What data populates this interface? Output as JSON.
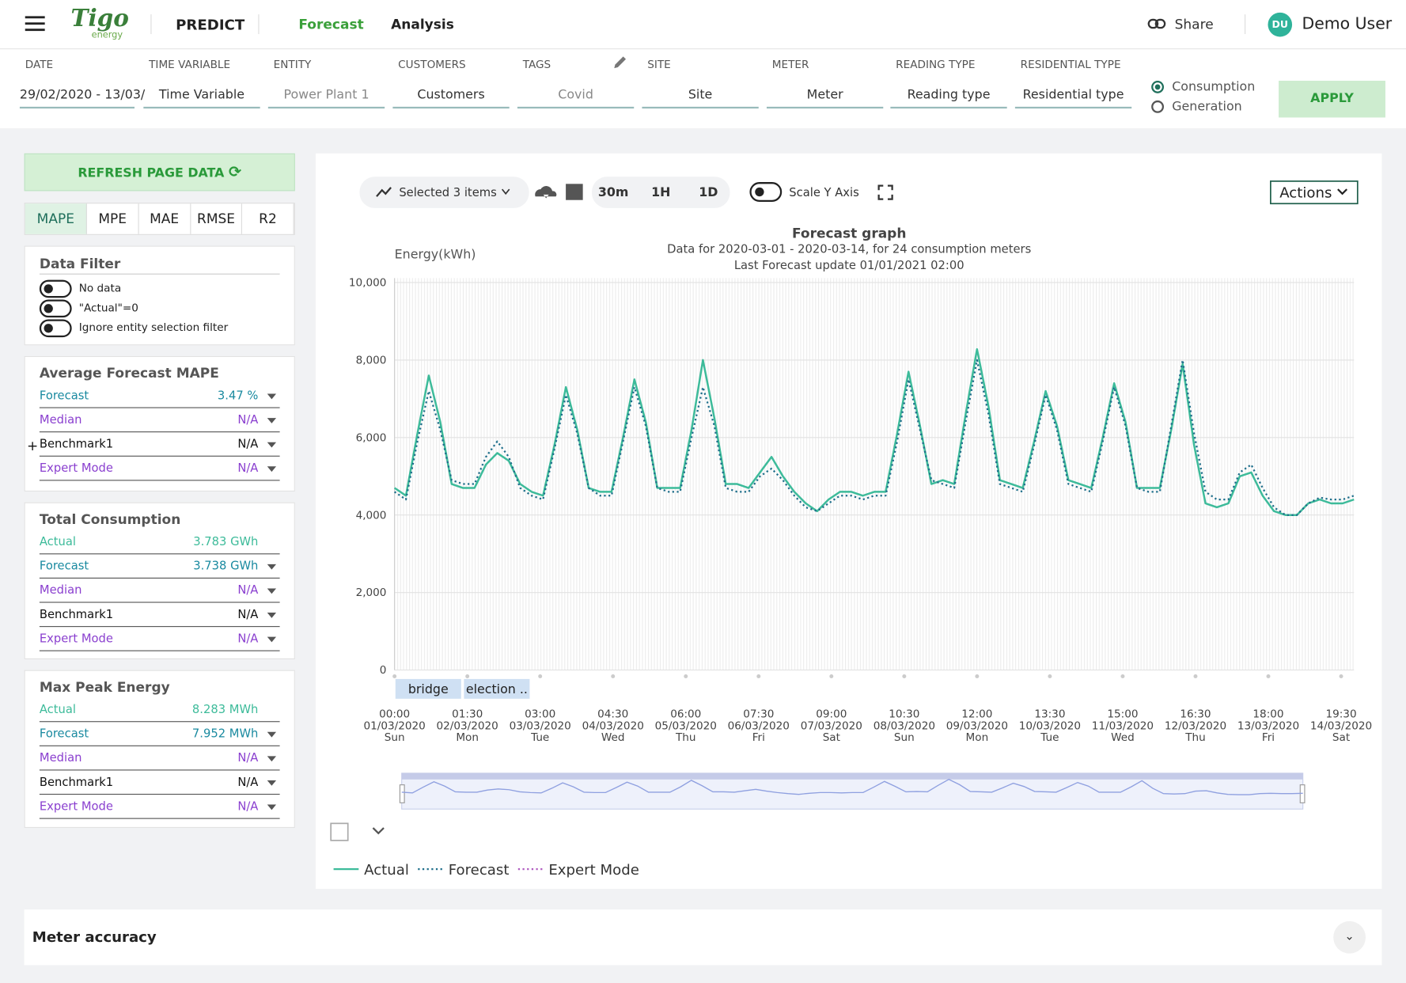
{
  "header": {
    "brand": "Tigo",
    "brand_sub": "energy",
    "app": "PREDICT",
    "tabs": [
      "Forecast",
      "Analysis"
    ],
    "share": "Share",
    "user_initials": "DU",
    "user": "Demo User"
  },
  "filters": [
    {
      "label": "DATE",
      "value": "29/02/2020 - 13/03/"
    },
    {
      "label": "TIME VARIABLE",
      "value": "Time Variable"
    },
    {
      "label": "ENTITY",
      "value": "Power Plant 1"
    },
    {
      "label": "CUSTOMERS",
      "value": "Customers"
    },
    {
      "label": "TAGS",
      "value": "Covid"
    },
    {
      "label": "SITE",
      "value": "Site"
    },
    {
      "label": "METER",
      "value": "Meter"
    },
    {
      "label": "READING TYPE",
      "value": "Reading type"
    },
    {
      "label": "RESIDENTIAL TYPE",
      "value": "Residential type"
    }
  ],
  "radio": [
    "Consumption",
    "Generation"
  ],
  "apply": "APPLY",
  "sidebar": {
    "refresh": "REFRESH PAGE DATA",
    "metric_tabs": [
      "MAPE",
      "MPE",
      "MAE",
      "RMSE",
      "R2"
    ],
    "data_filter": {
      "title": "Data Filter",
      "toggles": [
        "No data",
        "\"Actual\"=0",
        "Ignore entity selection filter"
      ]
    },
    "panels": [
      {
        "title": "Average Forecast MAPE",
        "rows": [
          {
            "name": "Forecast",
            "value": "3.47 %",
            "color": "#1a8aa0",
            "menu": true
          },
          {
            "name": "Median",
            "value": "N/A",
            "color": "#8a3fcf",
            "menu": true
          },
          {
            "name": "Benchmark1",
            "value": "N/A",
            "color": "#111111",
            "menu": true,
            "plus": "+"
          },
          {
            "name": "Expert Mode",
            "value": "N/A",
            "color": "#8a3fcf",
            "menu": true
          }
        ]
      },
      {
        "title": "Total Consumption",
        "rows": [
          {
            "name": "Actual",
            "value": "3.783 GWh",
            "color": "#3dbb9a",
            "menu": false
          },
          {
            "name": "Forecast",
            "value": "3.738 GWh",
            "color": "#1a8aa0",
            "menu": true
          },
          {
            "name": "Median",
            "value": "N/A",
            "color": "#8a3fcf",
            "menu": true
          },
          {
            "name": "Benchmark1",
            "value": "N/A",
            "color": "#111111",
            "menu": true
          },
          {
            "name": "Expert Mode",
            "value": "N/A",
            "color": "#8a3fcf",
            "menu": true
          }
        ]
      },
      {
        "title": "Max Peak Energy",
        "rows": [
          {
            "name": "Actual",
            "value": "8.283 MWh",
            "color": "#3dbb9a",
            "menu": false
          },
          {
            "name": "Forecast",
            "value": "7.952 MWh",
            "color": "#1a8aa0",
            "menu": true
          },
          {
            "name": "Median",
            "value": "N/A",
            "color": "#8a3fcf",
            "menu": true
          },
          {
            "name": "Benchmark1",
            "value": "N/A",
            "color": "#111111",
            "menu": true
          },
          {
            "name": "Expert Mode",
            "value": "N/A",
            "color": "#8a3fcf",
            "menu": true
          }
        ]
      }
    ]
  },
  "toolbar": {
    "selected": "Selected 3 items",
    "resolutions": [
      "30m",
      "1H",
      "1D"
    ],
    "scale": "Scale Y Axis",
    "actions": "Actions"
  },
  "chart_data": {
    "type": "line",
    "title": "Forecast graph",
    "subtitle": [
      "Data for 2020-03-01 - 2020-03-14, for 24 consumption meters",
      "Last Forecast update 01/01/2021 02:00"
    ],
    "y_label": "Energy(kWh)",
    "x": [
      0,
      4,
      8,
      12,
      16,
      20,
      24,
      28,
      32,
      36,
      40,
      44,
      48,
      52,
      56,
      60,
      64,
      68,
      72,
      76,
      80,
      84,
      88,
      92,
      96,
      100,
      104,
      108,
      112,
      116,
      120,
      124,
      128,
      132,
      136,
      140,
      144,
      148,
      152,
      156,
      160,
      164,
      168,
      172,
      176,
      180,
      184,
      188,
      192,
      196,
      200,
      204,
      208,
      212,
      216,
      220,
      224,
      228,
      232,
      236,
      240,
      244,
      248,
      252,
      256,
      260,
      264,
      268,
      272,
      276,
      280,
      284,
      288,
      292,
      296,
      300,
      304,
      308,
      312,
      316,
      320,
      324,
      328,
      332,
      336
    ],
    "xlim": [
      0,
      336
    ],
    "xticks": [
      {
        "value": 0,
        "label": [
          "00:00",
          "01/03/2020",
          "Sun"
        ]
      },
      {
        "value": 25.5,
        "label": [
          "01:30",
          "02/03/2020",
          "Mon"
        ]
      },
      {
        "value": 51,
        "label": [
          "03:00",
          "03/03/2020",
          "Tue"
        ]
      },
      {
        "value": 76.5,
        "label": [
          "04:30",
          "04/03/2020",
          "Wed"
        ]
      },
      {
        "value": 102,
        "label": [
          "06:00",
          "05/03/2020",
          "Thu"
        ]
      },
      {
        "value": 127.5,
        "label": [
          "07:30",
          "06/03/2020",
          "Fri"
        ]
      },
      {
        "value": 153,
        "label": [
          "09:00",
          "07/03/2020",
          "Sat"
        ]
      },
      {
        "value": 178.5,
        "label": [
          "10:30",
          "08/03/2020",
          "Sun"
        ]
      },
      {
        "value": 204,
        "label": [
          "12:00",
          "09/03/2020",
          "Mon"
        ]
      },
      {
        "value": 229.5,
        "label": [
          "13:30",
          "10/03/2020",
          "Tue"
        ]
      },
      {
        "value": 255,
        "label": [
          "15:00",
          "11/03/2020",
          "Wed"
        ]
      },
      {
        "value": 280.5,
        "label": [
          "16:30",
          "12/03/2020",
          "Thu"
        ]
      },
      {
        "value": 306,
        "label": [
          "18:00",
          "13/03/2020",
          "Fri"
        ]
      },
      {
        "value": 331.5,
        "label": [
          "19:30",
          "14/03/2020",
          "Sat"
        ]
      }
    ],
    "ylim": [
      0,
      10000
    ],
    "yticks": [
      0,
      {
        "value": 2000,
        "label": "2,000"
      },
      {
        "value": 4000,
        "label": "4,000"
      },
      {
        "value": 6000,
        "label": "6,000"
      },
      {
        "value": 8000,
        "label": "8,000"
      },
      {
        "value": 10000,
        "label": "10,000"
      }
    ],
    "grid": true,
    "series": [
      {
        "name": "Actual",
        "color": "#3dbb9a",
        "style": "solid",
        "values": [
          4700,
          4500,
          6100,
          7600,
          6400,
          4800,
          4700,
          4700,
          5300,
          5600,
          5400,
          4800,
          4600,
          4500,
          5800,
          7300,
          6200,
          4700,
          4600,
          4600,
          6000,
          7500,
          6400,
          4700,
          4700,
          4700,
          6200,
          8000,
          6500,
          4800,
          4800,
          4700,
          5100,
          5500,
          5000,
          4600,
          4300,
          4100,
          4400,
          4600,
          4600,
          4500,
          4600,
          4600,
          6100,
          7700,
          6300,
          4800,
          4900,
          4800,
          6600,
          8280,
          6800,
          4900,
          4800,
          4700,
          5900,
          7200,
          6300,
          4900,
          4800,
          4700,
          6000,
          7400,
          6400,
          4700,
          4700,
          4700,
          6200,
          7900,
          5800,
          4300,
          4200,
          4300,
          5000,
          5100,
          4500,
          4100,
          4000,
          4000,
          4300,
          4400,
          4300,
          4300,
          4400
        ]
      },
      {
        "name": "Forecast",
        "color": "#1f6f8b",
        "style": "dotted",
        "values": [
          4600,
          4400,
          5900,
          7200,
          6200,
          4900,
          4800,
          4800,
          5500,
          5900,
          5500,
          4700,
          4500,
          4400,
          5700,
          7100,
          6100,
          4700,
          4500,
          4500,
          5900,
          7300,
          6300,
          4700,
          4600,
          4600,
          6000,
          7300,
          6300,
          4700,
          4600,
          4600,
          5000,
          5200,
          4900,
          4500,
          4200,
          4100,
          4300,
          4500,
          4500,
          4400,
          4500,
          4500,
          5900,
          7500,
          6200,
          4900,
          4800,
          4700,
          6400,
          8000,
          6600,
          4800,
          4700,
          4600,
          5800,
          7100,
          6200,
          4800,
          4700,
          4600,
          5900,
          7300,
          6300,
          4700,
          4600,
          4600,
          6300,
          8000,
          6100,
          4600,
          4400,
          4400,
          5100,
          5300,
          4700,
          4200,
          4000,
          4000,
          4300,
          4450,
          4400,
          4400,
          4500
        ]
      },
      {
        "name": "Expert Mode",
        "color": "#b05cc0",
        "style": "dotted"
      }
    ],
    "annotations": [
      {
        "label": "bridge",
        "x": [
          0,
          23
        ]
      },
      {
        "label": "election ..",
        "x": [
          24,
          47
        ]
      }
    ]
  },
  "meter_accuracy": "Meter accuracy"
}
